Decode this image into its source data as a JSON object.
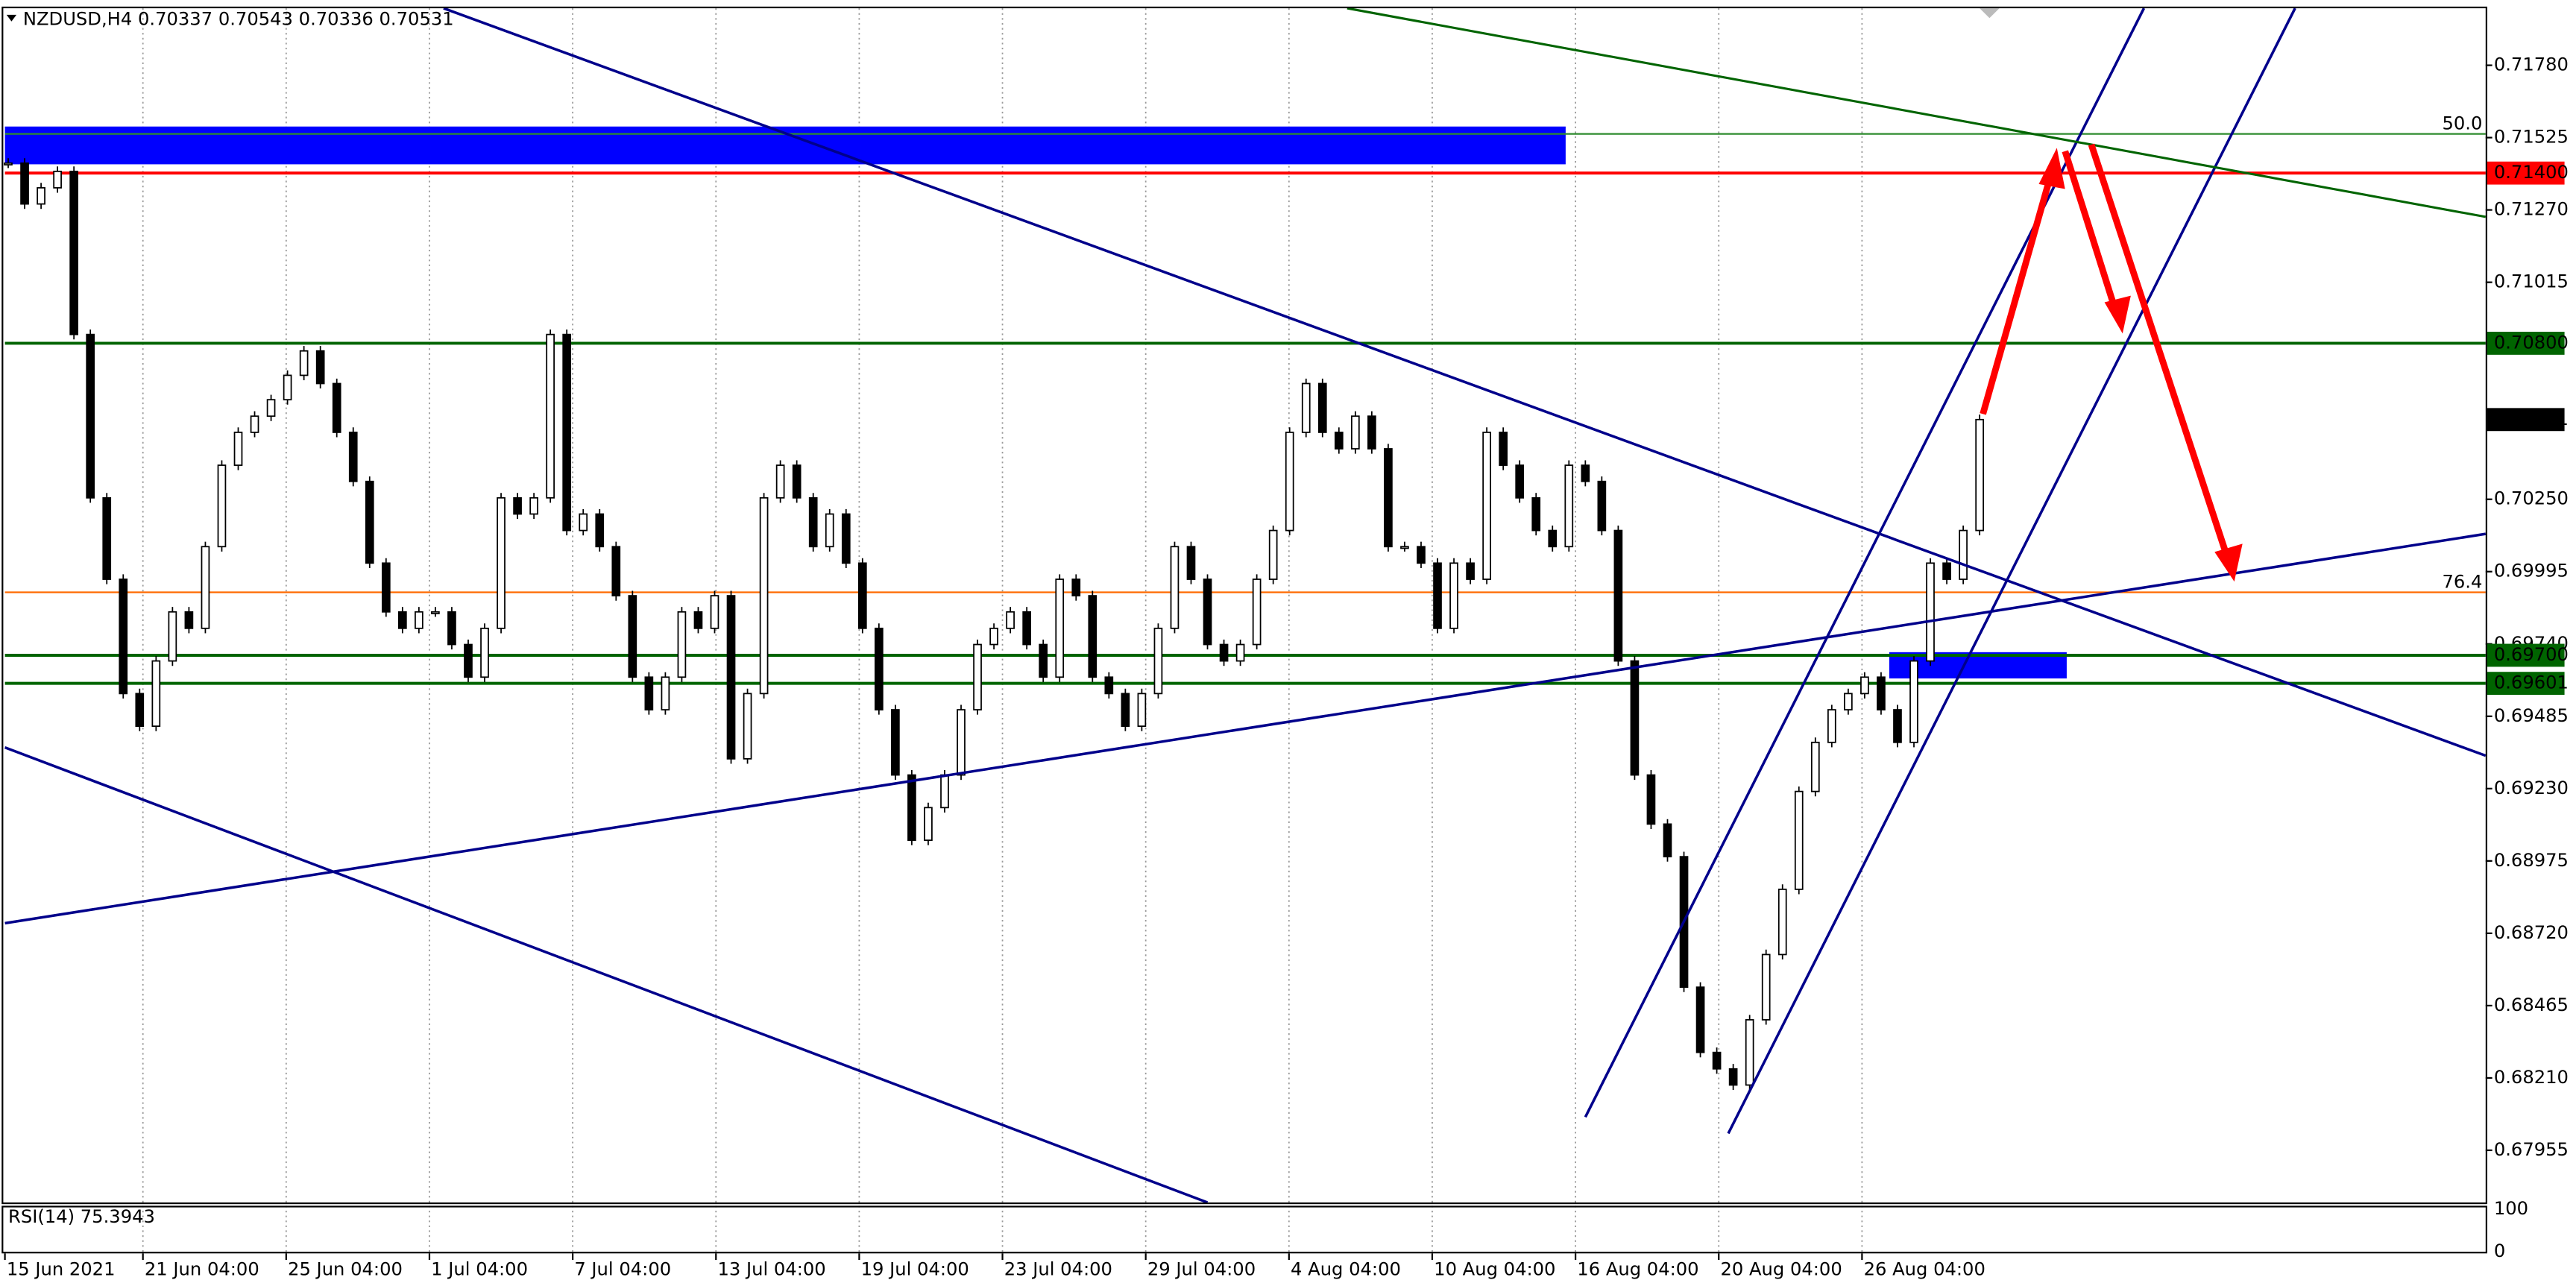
{
  "chart_data": {
    "type": "candlestick",
    "title": "NZDUSD,H4  0.70337 0.70543 0.70336 0.70531",
    "close": [
      0.71435,
      0.71291,
      0.71348,
      0.71406,
      0.70831,
      0.70255,
      0.69968,
      0.69565,
      0.6945,
      0.6968,
      0.69853,
      0.69795,
      0.70083,
      0.7037,
      0.70486,
      0.70543,
      0.70601,
      0.70687,
      0.70773,
      0.70658,
      0.70486,
      0.70313,
      0.70025,
      0.69853,
      0.69795,
      0.69853,
      0.69853,
      0.69738,
      0.69623,
      0.69795,
      0.70255,
      0.70198,
      0.70255,
      0.70831,
      0.7014,
      0.70198,
      0.70083,
      0.6991,
      0.69623,
      0.69508,
      0.69623,
      0.69853,
      0.69795,
      0.6991,
      0.69335,
      0.69565,
      0.70255,
      0.7037,
      0.70255,
      0.70083,
      0.70198,
      0.70025,
      0.69795,
      0.69508,
      0.69278,
      0.69048,
      0.69163,
      0.69278,
      0.69508,
      0.69738,
      0.69795,
      0.69853,
      0.69738,
      0.69623,
      0.69968,
      0.6991,
      0.69623,
      0.69565,
      0.6945,
      0.69565,
      0.69795,
      0.70083,
      0.69968,
      0.69738,
      0.6968,
      0.69738,
      0.69968,
      0.7014,
      0.70486,
      0.70658,
      0.70486,
      0.70428,
      0.70543,
      0.70428,
      0.70083,
      0.70083,
      0.70025,
      0.69795,
      0.70025,
      0.69968,
      0.70486,
      0.7037,
      0.70255,
      0.7014,
      0.70083,
      0.7037,
      0.70313,
      0.7014,
      0.6968,
      0.69278,
      0.69105,
      0.6899,
      0.6853,
      0.683,
      0.68242,
      0.68185,
      0.68415,
      0.68645,
      0.68875,
      0.6922,
      0.69393,
      0.69508,
      0.69565,
      0.69623,
      0.69508,
      0.69393,
      0.6968,
      0.70025,
      0.69968,
      0.7014,
      0.70531
    ],
    "up_color": "#ffffff",
    "down_color": "#000000",
    "categories": [
      "15 Jun 2021",
      "21 Jun 04:00",
      "25 Jun 04:00",
      "1 Jul 04:00",
      "7 Jul 04:00",
      "13 Jul 04:00",
      "19 Jul 04:00",
      "23 Jul 04:00",
      "29 Jul 04:00",
      "4 Aug 04:00",
      "10 Aug 04:00",
      "16 Aug 04:00",
      "20 Aug 04:00",
      "26 Aug 04:00"
    ],
    "ylim": [
      0.67771,
      0.71981
    ],
    "yticks": [
      {
        "value": 0.7178,
        "label": "0.71780"
      },
      {
        "value": 0.71525,
        "label": "0.71525"
      },
      {
        "value": 0.7127,
        "label": "0.71270"
      },
      {
        "value": 0.71015,
        "label": "0.71015"
      },
      {
        "value": 0.7025,
        "label": "0.70250"
      },
      {
        "value": 0.69995,
        "label": "0.69995"
      },
      {
        "value": 0.6974,
        "label": "0.69740"
      },
      {
        "value": 0.69485,
        "label": "0.69485"
      },
      {
        "value": 0.6923,
        "label": "0.69230"
      },
      {
        "value": 0.68975,
        "label": "0.68975"
      },
      {
        "value": 0.6872,
        "label": "0.68720"
      },
      {
        "value": 0.68465,
        "label": "0.68465"
      },
      {
        "value": 0.6821,
        "label": "0.68210"
      },
      {
        "value": 0.67955,
        "label": "0.67955"
      }
    ],
    "levels": [
      {
        "value": 0.714,
        "label": "0.71400",
        "color": "#ff0000"
      },
      {
        "value": 0.708,
        "label": "0.70800",
        "color": "#006400"
      },
      {
        "value": 0.697,
        "label": "0.69700",
        "color": "#006400"
      },
      {
        "value": 0.69601,
        "label": "0.69601",
        "color": "#006400"
      },
      {
        "value": 0.70531,
        "label": "0.70531",
        "color": "#000000"
      }
    ],
    "fib_levels": [
      {
        "value": 0.71538,
        "label": "50.0",
        "color": "#2e8b2e"
      },
      {
        "value": 0.69922,
        "label": "76.4",
        "color": "#ff6a00"
      }
    ],
    "rsi": {
      "title": "RSI(14) 75.3943",
      "ylim": [
        0,
        100
      ],
      "yticks": [
        100,
        0
      ]
    }
  }
}
